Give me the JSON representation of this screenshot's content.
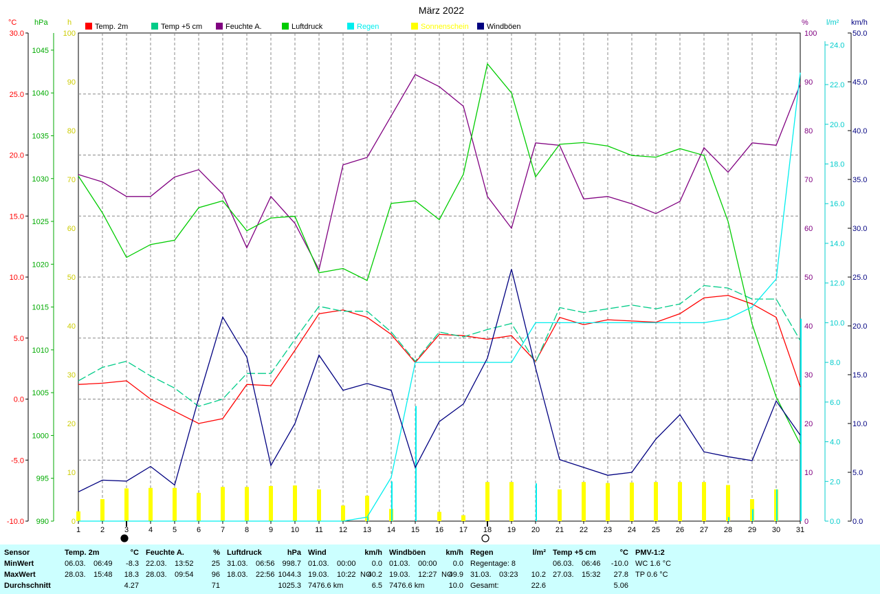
{
  "chart_data": {
    "type": "line",
    "title": "März 2022",
    "x": [
      1,
      2,
      3,
      4,
      5,
      6,
      7,
      8,
      9,
      10,
      11,
      12,
      13,
      14,
      15,
      16,
      17,
      18,
      19,
      20,
      21,
      22,
      23,
      24,
      25,
      26,
      27,
      28,
      29,
      30,
      31
    ],
    "axes": {
      "temp": {
        "unit": "°C",
        "range": [
          -10,
          30
        ],
        "ticks": [
          "30.0",
          "25.0",
          "20.0",
          "15.0",
          "10.0",
          "5.0",
          "0.0",
          "-5.0",
          "-10.0"
        ],
        "color": "#ff0000"
      },
      "hpa": {
        "unit": "hPa",
        "range": [
          990,
          1047
        ],
        "ticks": [
          "1045",
          "1040",
          "1035",
          "1030",
          "1025",
          "1020",
          "1015",
          "1010",
          "1005",
          "1000",
          "995",
          "990"
        ],
        "color": "#00aa00"
      },
      "hours": {
        "unit": "h",
        "range": [
          0,
          100
        ],
        "ticks": [
          "100",
          "90",
          "80",
          "70",
          "60",
          "50",
          "40",
          "30",
          "20",
          "10",
          "0"
        ],
        "color": "#cccc00"
      },
      "pct": {
        "unit": "%",
        "range": [
          0,
          100
        ],
        "ticks": [
          "100",
          "90",
          "80",
          "70",
          "60",
          "50",
          "40",
          "30",
          "20",
          "10",
          "0"
        ],
        "color": "#800080"
      },
      "rain": {
        "unit": "l/m²",
        "range": [
          0,
          24.6
        ],
        "ticks": [
          "24.0",
          "22.0",
          "20.0",
          "18.0",
          "16.0",
          "14.0",
          "12.0",
          "10.0",
          "8.0",
          "6.0",
          "4.0",
          "2.0",
          "0.0"
        ],
        "color": "#00cccc"
      },
      "wind": {
        "unit": "km/h",
        "range": [
          0,
          50
        ],
        "ticks": [
          "50.0",
          "45.0",
          "40.0",
          "35.0",
          "30.0",
          "25.0",
          "20.0",
          "15.0",
          "10.0",
          "5.0",
          "0.0"
        ],
        "color": "#000080"
      }
    },
    "legend": [
      {
        "name": "Temp. 2m",
        "color": "#ff0000"
      },
      {
        "name": "Temp +5 cm",
        "color": "#00cc88"
      },
      {
        "name": "Feuchte A.",
        "color": "#800080"
      },
      {
        "name": "Luftdruck",
        "color": "#00cc00"
      },
      {
        "name": "Regen",
        "color": "#00eeee"
      },
      {
        "name": "Sonnenschein",
        "color": "#ffff00"
      },
      {
        "name": "Windböen",
        "color": "#000080"
      }
    ],
    "series": [
      {
        "name": "Temp. 2m",
        "axis": "temp",
        "color": "#ff0000",
        "dash": false,
        "values": [
          1.2,
          1.3,
          1.5,
          0,
          -1,
          -2,
          -1.6,
          1.2,
          1.1,
          4,
          7,
          7.3,
          6.7,
          5.3,
          3,
          5.3,
          5.2,
          4.9,
          5.2,
          3.1,
          6.7,
          6.1,
          6.5,
          6.4,
          6.3,
          7,
          8.3,
          8.5,
          7.8,
          6.7,
          1.0
        ]
      },
      {
        "name": "Temp +5 cm",
        "axis": "temp",
        "color": "#00cc88",
        "dash": true,
        "values": [
          1.5,
          2.6,
          3.1,
          1.9,
          0.9,
          -0.6,
          0,
          2.1,
          2.1,
          4.9,
          7.6,
          7.2,
          7.2,
          5.5,
          3.1,
          5.5,
          5.1,
          5.7,
          6.2,
          3,
          7.5,
          7.1,
          7.4,
          7.7,
          7.4,
          7.8,
          9.3,
          9.1,
          8.2,
          8.2,
          4.8
        ]
      },
      {
        "name": "Feuchte A.",
        "axis": "pct",
        "color": "#800080",
        "dash": false,
        "values": [
          71,
          69.5,
          66.5,
          66.5,
          70.5,
          72,
          67,
          56,
          66.5,
          61,
          51.5,
          73,
          74.5,
          83,
          91.5,
          89,
          85,
          66.5,
          60,
          77.5,
          77,
          66,
          66.5,
          65,
          63,
          65.5,
          76.5,
          71.5,
          77.5,
          77,
          89.5
        ]
      },
      {
        "name": "Luftdruck",
        "axis": "hpa",
        "color": "#00cc00",
        "dash": false,
        "values": [
          1030.3,
          1026,
          1020.8,
          1022.3,
          1022.8,
          1026.6,
          1027.4,
          1023.9,
          1025.4,
          1025.6,
          1019,
          1019.5,
          1018.1,
          1027.1,
          1027.4,
          1025.2,
          1030.5,
          1043.4,
          1040,
          1030.2,
          1034,
          1034.2,
          1033.8,
          1032.7,
          1032.5,
          1033.5,
          1032.7,
          1025,
          1013,
          1004.5,
          999
        ]
      },
      {
        "name": "Regen",
        "axis": "rain",
        "color": "#00eeee",
        "dash": false,
        "values": [
          0,
          0,
          0,
          0,
          0,
          0,
          0,
          0,
          0,
          0,
          0,
          0,
          0.2,
          2.2,
          8.0,
          8.0,
          8.0,
          8.0,
          8.0,
          10.0,
          10.0,
          10.0,
          10.0,
          10.0,
          10.0,
          10.0,
          10.0,
          10.2,
          10.8,
          12.2,
          22.6
        ]
      },
      {
        "name": "Windböen",
        "axis": "wind",
        "color": "#000080",
        "dash": false,
        "values": [
          3,
          4.2,
          4.1,
          5.6,
          3.7,
          12.6,
          20.9,
          16.8,
          5.7,
          10,
          17,
          13.4,
          14.1,
          13.4,
          5.5,
          10.2,
          12,
          16.7,
          25.8,
          15.7,
          6.3,
          5.5,
          4.7,
          5.0,
          8.4,
          10.9,
          7.1,
          6.6,
          6.2,
          12.3,
          8.8
        ]
      }
    ],
    "bars": [
      {
        "name": "Sonnenschein",
        "axis": "hours",
        "color": "#ffff00",
        "values": [
          2,
          4.5,
          6.7,
          6.8,
          6.8,
          5.8,
          7,
          7,
          7.2,
          7.3,
          6.5,
          3.2,
          5.2,
          2.5,
          0,
          1.9,
          1.2,
          8,
          8,
          0,
          6.5,
          8,
          7.8,
          7.9,
          8,
          8,
          8,
          7.4,
          4.5,
          6.5,
          0
        ]
      },
      {
        "name": "Regen",
        "axis": "rain",
        "color": "#00eeee",
        "values": [
          0,
          0,
          0,
          0,
          0,
          0,
          0,
          0,
          0,
          0,
          0,
          0,
          0.2,
          2.0,
          5.8,
          0,
          0,
          0,
          0,
          1.9,
          0,
          0,
          0,
          0,
          0,
          0,
          0,
          0.2,
          0.6,
          1.6,
          10.2
        ]
      }
    ],
    "moon": [
      {
        "day": 3,
        "phase": "new"
      },
      {
        "day": 18,
        "phase": "full"
      }
    ],
    "grid": true
  },
  "stats": {
    "columns": [
      {
        "head": "Sensor",
        "unit": "",
        "rows": [
          {
            "label": "MinWert"
          },
          {
            "label": "MaxWert"
          },
          {
            "label": "Durchschnitt"
          }
        ]
      },
      {
        "head": "Temp. 2m",
        "unit": "°C",
        "rows": [
          {
            "date": "06.03.",
            "time": "06:49",
            "dir": "",
            "value": "-8.3"
          },
          {
            "date": "28.03.",
            "time": "15:48",
            "dir": "",
            "value": "18.3"
          },
          {
            "date": "",
            "time": "",
            "dir": "",
            "value": "4.27"
          }
        ]
      },
      {
        "head": "Feuchte A.",
        "unit": "%",
        "rows": [
          {
            "date": "22.03.",
            "time": "13:52",
            "dir": "",
            "value": "25"
          },
          {
            "date": "28.03.",
            "time": "09:54",
            "dir": "",
            "value": "96"
          },
          {
            "date": "",
            "time": "",
            "dir": "",
            "value": "71"
          }
        ]
      },
      {
        "head": "Luftdruck",
        "unit": "hPa",
        "rows": [
          {
            "date": "31.03.",
            "time": "06:56",
            "dir": "",
            "value": "998.7"
          },
          {
            "date": "18.03.",
            "time": "22:56",
            "dir": "",
            "value": "1044.3"
          },
          {
            "date": "",
            "time": "",
            "dir": "",
            "value": "1025.3"
          }
        ]
      },
      {
        "head": "Wind",
        "unit": "km/h",
        "rows": [
          {
            "date": "01.03.",
            "time": "00:00",
            "dir": "",
            "value": "0.0"
          },
          {
            "date": "19.03.",
            "time": "10:22",
            "dir": "NO",
            "value": "40.2"
          },
          {
            "date": "7476.6 km",
            "time": "",
            "dir": "",
            "value": "6.5"
          }
        ]
      },
      {
        "head": "Windböen",
        "unit": "km/h",
        "rows": [
          {
            "date": "01.03.",
            "time": "00:00",
            "dir": "",
            "value": "0.0"
          },
          {
            "date": "19.03.",
            "time": "12:27",
            "dir": "NO",
            "value": "49.9"
          },
          {
            "date": "7476.6 km",
            "time": "",
            "dir": "",
            "value": "10.0"
          }
        ]
      },
      {
        "head": "Regen",
        "unit": "l/m²",
        "rows": [
          {
            "date": "Regentage: 8",
            "time": "",
            "dir": "",
            "value": ""
          },
          {
            "date": "31.03.",
            "time": "03:23",
            "dir": "",
            "value": "10.2"
          },
          {
            "date": "Gesamt:",
            "time": "",
            "dir": "",
            "value": "22.6"
          }
        ]
      },
      {
        "head": "Temp +5 cm",
        "unit": "°C",
        "rows": [
          {
            "date": "06.03.",
            "time": "06:46",
            "dir": "",
            "value": "-10.0"
          },
          {
            "date": "27.03.",
            "time": "15:32",
            "dir": "",
            "value": "27.8"
          },
          {
            "date": "",
            "time": "",
            "dir": "",
            "value": "5.06"
          }
        ]
      },
      {
        "head": "PMV-1:2",
        "unit": "",
        "rows": [
          {
            "date": "WC 1.6 °C",
            "time": "",
            "dir": "",
            "value": ""
          },
          {
            "date": "TP 0.6 °C",
            "time": "",
            "dir": "",
            "value": ""
          },
          {
            "date": "",
            "time": "",
            "dir": "",
            "value": ""
          }
        ]
      }
    ]
  }
}
